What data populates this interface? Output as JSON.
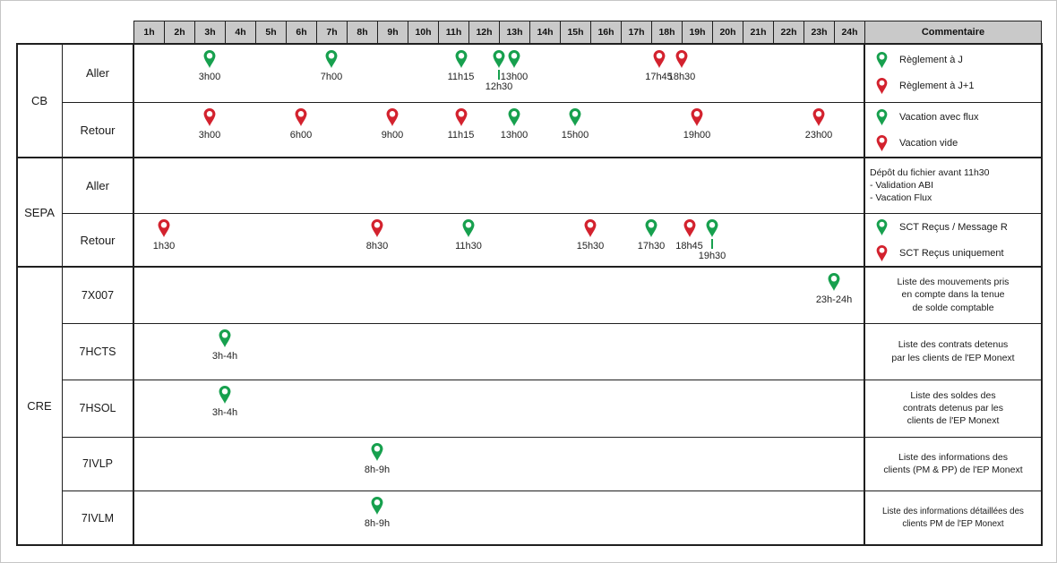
{
  "colors": {
    "green": "#17a04e",
    "red": "#d3222e",
    "header_bg": "#c9c9c9",
    "border": "#1f1f1f"
  },
  "header": {
    "hours": [
      "1h",
      "2h",
      "3h",
      "4h",
      "5h",
      "6h",
      "7h",
      "8h",
      "9h",
      "10h",
      "11h",
      "12h",
      "13h",
      "14h",
      "15h",
      "16h",
      "17h",
      "18h",
      "19h",
      "20h",
      "21h",
      "22h",
      "23h",
      "24h"
    ],
    "comment_label": "Commentaire"
  },
  "groups": [
    {
      "name": "CB",
      "rows": [
        {
          "label": "Aller",
          "markers": [
            {
              "time": "3h00",
              "hour": 3,
              "color": "green"
            },
            {
              "time": "7h00",
              "hour": 7,
              "color": "green"
            },
            {
              "time": "11h15",
              "hour": 11.25,
              "color": "green"
            },
            {
              "time": "12h30",
              "hour": 12.5,
              "color": "green",
              "second_line": true
            },
            {
              "time": "13h00",
              "hour": 13,
              "color": "green"
            },
            {
              "time": "17h45",
              "hour": 17.75,
              "color": "red"
            },
            {
              "time": "18h30",
              "hour": 18.5,
              "color": "red"
            }
          ],
          "comment": {
            "type": "legend",
            "items": [
              {
                "color": "green",
                "text": "Règlement à J"
              },
              {
                "color": "red",
                "text": "Règlement à J+1"
              }
            ]
          }
        },
        {
          "label": "Retour",
          "markers": [
            {
              "time": "3h00",
              "hour": 3,
              "color": "red"
            },
            {
              "time": "6h00",
              "hour": 6,
              "color": "red"
            },
            {
              "time": "9h00",
              "hour": 9,
              "color": "red"
            },
            {
              "time": "11h15",
              "hour": 11.25,
              "color": "red"
            },
            {
              "time": "13h00",
              "hour": 13,
              "color": "green"
            },
            {
              "time": "15h00",
              "hour": 15,
              "color": "green"
            },
            {
              "time": "19h00",
              "hour": 19,
              "color": "red"
            },
            {
              "time": "23h00",
              "hour": 23,
              "color": "red"
            }
          ],
          "comment": {
            "type": "legend",
            "items": [
              {
                "color": "green",
                "text": "Vacation avec flux"
              },
              {
                "color": "red",
                "text": "Vacation vide"
              }
            ]
          }
        }
      ]
    },
    {
      "name": "SEPA",
      "rows": [
        {
          "label": "Aller",
          "markers": [],
          "comment": {
            "type": "text",
            "align": "left",
            "lines": [
              "Dépôt du fichier avant 11h30",
              "- Validation ABI",
              "- Vacation Flux"
            ]
          }
        },
        {
          "label": "Retour",
          "markers": [
            {
              "time": "1h30",
              "hour": 1.5,
              "color": "red"
            },
            {
              "time": "8h30",
              "hour": 8.5,
              "color": "red"
            },
            {
              "time": "11h30",
              "hour": 11.5,
              "color": "green"
            },
            {
              "time": "15h30",
              "hour": 15.5,
              "color": "red"
            },
            {
              "time": "17h30",
              "hour": 17.5,
              "color": "green"
            },
            {
              "time": "18h45",
              "hour": 18.75,
              "color": "red"
            },
            {
              "time": "19h30",
              "hour": 19.5,
              "color": "green",
              "second_line": true
            }
          ],
          "comment": {
            "type": "legend",
            "items": [
              {
                "color": "green",
                "text": "SCT Reçus / Message R"
              },
              {
                "color": "red",
                "text": "SCT Reçus uniquement"
              }
            ]
          }
        }
      ]
    },
    {
      "name": "CRE",
      "rows": [
        {
          "label": "7X007",
          "markers": [
            {
              "time": "23h-24h",
              "hour": 23.5,
              "color": "green"
            }
          ],
          "comment": {
            "type": "text",
            "align": "center",
            "lines": [
              "Liste des mouvements pris",
              "en compte dans la tenue",
              "de solde comptable"
            ]
          }
        },
        {
          "label": "7HCTS",
          "markers": [
            {
              "time": "3h-4h",
              "hour": 3.5,
              "color": "green"
            }
          ],
          "comment": {
            "type": "text",
            "align": "center",
            "lines": [
              "Liste des contrats detenus",
              "par les clients de l'EP Monext"
            ]
          }
        },
        {
          "label": "7HSOL",
          "markers": [
            {
              "time": "3h-4h",
              "hour": 3.5,
              "color": "green"
            }
          ],
          "comment": {
            "type": "text",
            "align": "center",
            "lines": [
              "Liste des soldes des",
              "contrats detenus par les",
              "clients de l'EP Monext"
            ]
          }
        },
        {
          "label": "7IVLP",
          "markers": [
            {
              "time": "8h-9h",
              "hour": 8.5,
              "color": "green"
            }
          ],
          "comment": {
            "type": "text",
            "align": "center",
            "lines": [
              "Liste des informations des",
              "clients (PM & PP) de l'EP Monext"
            ]
          }
        },
        {
          "label": "7IVLM",
          "markers": [
            {
              "time": "8h-9h",
              "hour": 8.5,
              "color": "green"
            }
          ],
          "comment": {
            "type": "text",
            "align": "center",
            "small": true,
            "lines": [
              "Liste des informations détaillées des",
              "clients PM de l'EP Monext"
            ]
          }
        }
      ]
    }
  ]
}
